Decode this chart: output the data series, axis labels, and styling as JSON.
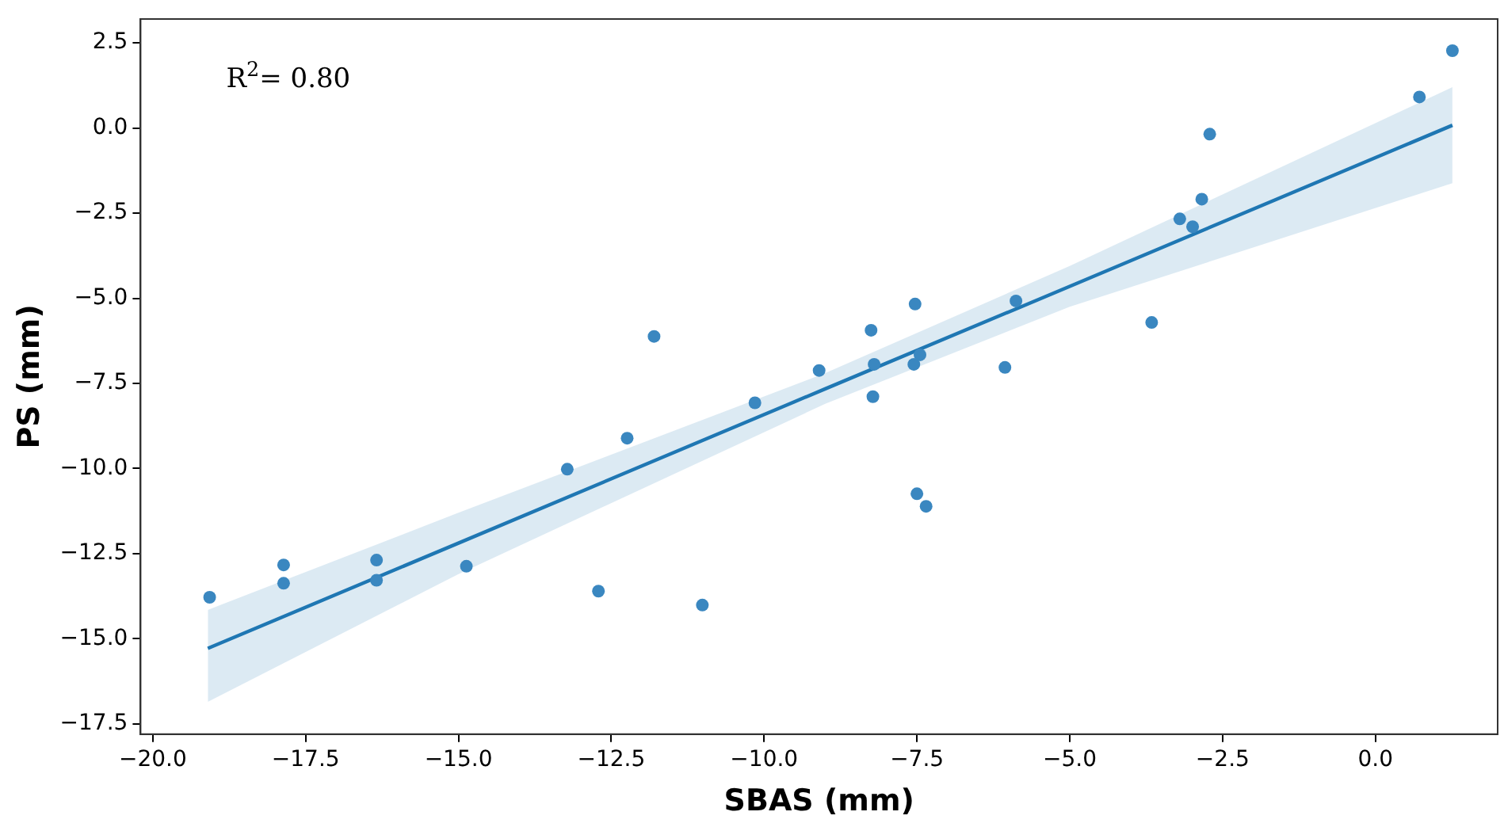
{
  "chart_data": {
    "type": "scatter",
    "xlabel": "SBAS (mm)",
    "ylabel": "PS (mm)",
    "annotations": [
      "R$^{2}$= 0.80"
    ],
    "xlim": [
      -20.2,
      2
    ],
    "ylim": [
      -17.8,
      3.2
    ],
    "xticks": [
      {
        "value": -20,
        "label": "−20.0"
      },
      {
        "value": -17.5,
        "label": "−17.5"
      },
      {
        "value": -15,
        "label": "−15.0"
      },
      {
        "value": -12.5,
        "label": "−12.5"
      },
      {
        "value": -10,
        "label": "−10.0"
      },
      {
        "value": -7.5,
        "label": "−7.5"
      },
      {
        "value": -5,
        "label": "−5.0"
      },
      {
        "value": -2.5,
        "label": "−2.5"
      },
      {
        "value": 0,
        "label": "0.0"
      }
    ],
    "yticks": [
      {
        "value": -17.5,
        "label": "−17.5"
      },
      {
        "value": -15,
        "label": "−15.0"
      },
      {
        "value": -12.5,
        "label": "−12.5"
      },
      {
        "value": -10,
        "label": "−10.0"
      },
      {
        "value": -7.5,
        "label": "−7.5"
      },
      {
        "value": -5,
        "label": "−5.0"
      },
      {
        "value": -2.5,
        "label": "−2.5"
      },
      {
        "value": 0,
        "label": "0.0"
      },
      {
        "value": 2.5,
        "label": "2.5"
      }
    ],
    "grid": false,
    "legend": false,
    "marker": "circle",
    "series": [
      {
        "color": "#3a87c0",
        "x": [
          -19.07,
          -17.86,
          -17.86,
          -16.34,
          -16.34,
          -14.87,
          -13.22,
          -12.71,
          -12.24,
          -11.8,
          -11.01,
          -10.15,
          -9.1,
          -8.25,
          -8.2,
          -8.22,
          -7.53,
          -7.55,
          -7.45,
          -7.5,
          -7.35,
          -6.06,
          -5.88,
          -3.66,
          -3.2,
          -2.99,
          -2.84,
          -2.71,
          0.72,
          1.26
        ],
        "values": [
          -13.78,
          -12.83,
          -13.37,
          -12.69,
          -13.28,
          -12.87,
          -10.02,
          -13.6,
          -9.11,
          -6.12,
          -14.01,
          -8.07,
          -7.12,
          -5.94,
          -6.94,
          -7.89,
          -5.17,
          -6.94,
          -6.66,
          -10.74,
          -11.11,
          -7.03,
          -5.08,
          -5.71,
          -2.67,
          -2.9,
          -2.09,
          -0.18,
          0.91,
          2.27
        ]
      },
      {
        "type": "line",
        "color": "#1f77b4",
        "marker": "none",
        "line_style": "solid",
        "x": [
          -19.1,
          -15,
          -9,
          -5,
          1.26
        ],
        "values": [
          -15.28,
          -12.19,
          -7.66,
          -4.65,
          0.08
        ],
        "lower": [
          -16.85,
          -13.1,
          -8.1,
          -5.25,
          -1.62
        ],
        "upper": [
          -14.15,
          -11.3,
          -7.2,
          -4.05,
          1.2
        ]
      }
    ]
  }
}
